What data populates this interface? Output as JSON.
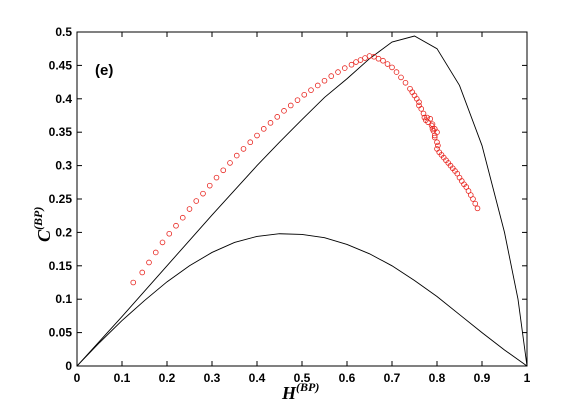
{
  "chart_data": {
    "type": "scatter",
    "panel_label": "(e)",
    "xlabel": {
      "main": "H",
      "sup": "(BP)"
    },
    "ylabel": {
      "main": "C",
      "sup": "(BP)"
    },
    "xlim": [
      0,
      1
    ],
    "ylim": [
      0,
      0.5
    ],
    "xticks": [
      "0",
      "0.1",
      "0.2",
      "0.3",
      "0.4",
      "0.5",
      "0.6",
      "0.7",
      "0.8",
      "0.9",
      "1"
    ],
    "yticks": [
      "0",
      "0.05",
      "0.1",
      "0.15",
      "0.2",
      "0.25",
      "0.3",
      "0.35",
      "0.4",
      "0.45",
      "0.5"
    ],
    "grid": false,
    "colors": {
      "points": "#e8251f",
      "curves": "#000000"
    },
    "boundary_curves": [
      {
        "role": "upper",
        "x": [
          0,
          0.05,
          0.1,
          0.15,
          0.2,
          0.25,
          0.3,
          0.35,
          0.4,
          0.45,
          0.5,
          0.55,
          0.6,
          0.65,
          0.7,
          0.75,
          0.8,
          0.85,
          0.9,
          0.95,
          0.98,
          1
        ],
        "y": [
          0,
          0.037,
          0.074,
          0.112,
          0.15,
          0.188,
          0.226,
          0.263,
          0.3,
          0.335,
          0.369,
          0.402,
          0.43,
          0.46,
          0.485,
          0.494,
          0.475,
          0.42,
          0.33,
          0.2,
          0.1,
          0
        ]
      },
      {
        "role": "lower",
        "x": [
          0,
          0.05,
          0.1,
          0.15,
          0.2,
          0.25,
          0.3,
          0.35,
          0.4,
          0.45,
          0.5,
          0.55,
          0.6,
          0.65,
          0.7,
          0.75,
          0.8,
          0.85,
          0.9,
          0.95,
          1
        ],
        "y": [
          0,
          0.035,
          0.068,
          0.098,
          0.126,
          0.15,
          0.17,
          0.185,
          0.194,
          0.198,
          0.197,
          0.192,
          0.182,
          0.168,
          0.15,
          0.128,
          0.104,
          0.077,
          0.05,
          0.024,
          0
        ]
      }
    ],
    "series": [
      {
        "x": [
          0.125,
          0.145,
          0.16,
          0.175,
          0.19,
          0.205,
          0.22,
          0.235,
          0.25,
          0.265,
          0.28,
          0.295,
          0.31,
          0.325,
          0.34,
          0.355,
          0.37,
          0.385,
          0.4,
          0.415,
          0.43,
          0.445,
          0.46,
          0.475,
          0.49,
          0.505,
          0.52,
          0.535,
          0.55,
          0.565,
          0.58,
          0.595,
          0.61,
          0.62,
          0.63,
          0.64,
          0.65,
          0.66,
          0.67,
          0.68,
          0.69,
          0.7,
          0.71,
          0.72,
          0.73,
          0.74,
          0.745,
          0.75,
          0.755,
          0.76,
          0.76,
          0.765,
          0.77,
          0.772,
          0.775,
          0.778,
          0.78,
          0.785,
          0.79,
          0.795,
          0.8,
          0.795,
          0.79,
          0.788,
          0.792,
          0.795,
          0.8,
          0.802,
          0.8,
          0.805,
          0.81,
          0.815,
          0.82,
          0.825,
          0.83,
          0.835,
          0.84,
          0.845,
          0.85,
          0.855,
          0.86,
          0.865,
          0.87,
          0.875,
          0.88,
          0.885,
          0.89
        ],
        "y": [
          0.125,
          0.14,
          0.155,
          0.17,
          0.185,
          0.198,
          0.21,
          0.222,
          0.235,
          0.247,
          0.258,
          0.27,
          0.282,
          0.293,
          0.304,
          0.315,
          0.325,
          0.335,
          0.345,
          0.355,
          0.364,
          0.373,
          0.382,
          0.39,
          0.398,
          0.406,
          0.413,
          0.42,
          0.427,
          0.434,
          0.44,
          0.446,
          0.451,
          0.455,
          0.458,
          0.461,
          0.464,
          0.463,
          0.46,
          0.457,
          0.452,
          0.447,
          0.44,
          0.432,
          0.424,
          0.415,
          0.41,
          0.405,
          0.4,
          0.395,
          0.39,
          0.385,
          0.378,
          0.372,
          0.368,
          0.372,
          0.365,
          0.37,
          0.362,
          0.355,
          0.35,
          0.345,
          0.355,
          0.36,
          0.352,
          0.342,
          0.335,
          0.33,
          0.325,
          0.32,
          0.316,
          0.312,
          0.308,
          0.304,
          0.3,
          0.296,
          0.292,
          0.288,
          0.282,
          0.277,
          0.272,
          0.268,
          0.262,
          0.256,
          0.25,
          0.243,
          0.236
        ]
      }
    ]
  }
}
